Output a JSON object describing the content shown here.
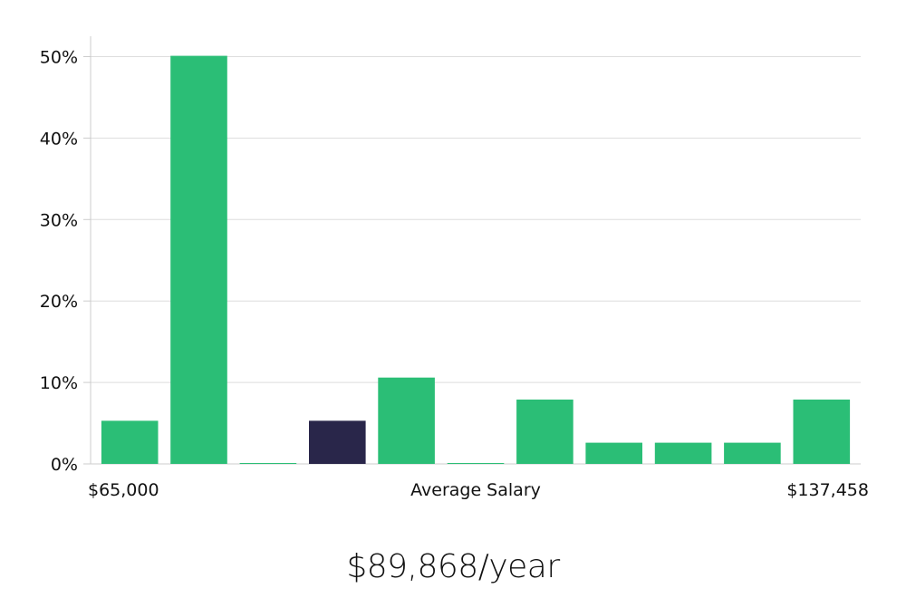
{
  "chart_data": {
    "type": "bar",
    "title": "",
    "xlabel": "Average Salary",
    "ylabel": "",
    "ylim": [
      0,
      52.5
    ],
    "yticks": [
      0,
      10,
      20,
      30,
      40,
      50
    ],
    "ytick_format": "{v}%",
    "x_range_labels": {
      "min": "$65,000",
      "max": "$137,458"
    },
    "grid": true,
    "legend": "none",
    "values": [
      5.3,
      50.1,
      0.1,
      5.3,
      10.6,
      0.1,
      7.9,
      2.6,
      2.6,
      2.6,
      7.9
    ],
    "highlight_index": 3,
    "colors": {
      "bar": "#2bbe76",
      "highlight": "#29264a",
      "grid": "#dddddd",
      "axis": "#cccccc"
    }
  },
  "salary_summary": "$89,868/year"
}
